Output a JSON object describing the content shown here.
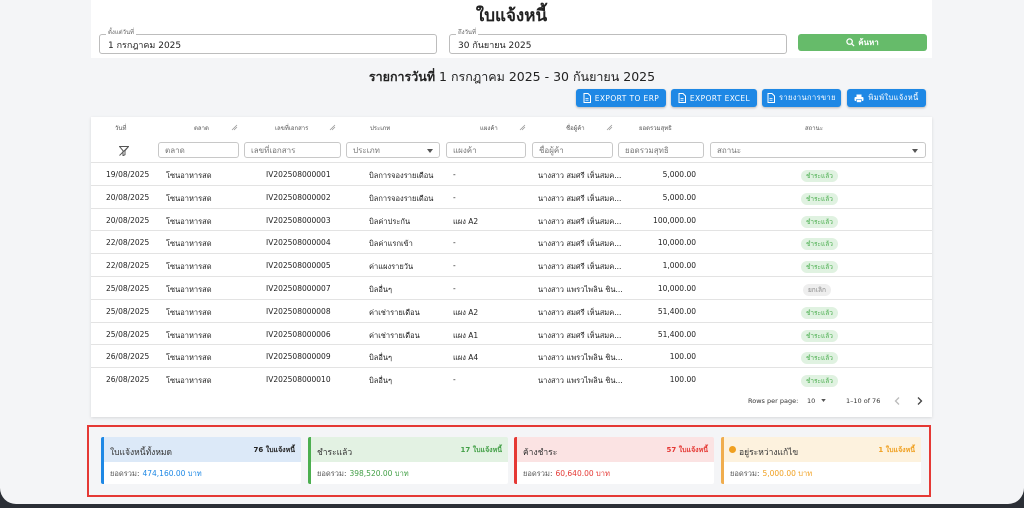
{
  "page": {
    "title": "ใบแจ้งหนี้"
  },
  "filters": {
    "start_label": "ตั้งแต่วันที่",
    "start_value": "1 กรกฎาคม 2025",
    "end_label": "ถึงวันที่",
    "end_value": "30 กันยายน 2025",
    "search_label": "ค้นหา"
  },
  "subtitle": {
    "prefix": "รายการวันที่",
    "range": " 1 กรกฎาคม 2025 - 30 กันยายน 2025"
  },
  "toolbar": {
    "export_erp": "EXPORT TO ERP",
    "export_excel": "EXPORT EXCEL",
    "sales_report": "รายงานการขาย",
    "print": "พิมพ์ใบแจ้งหนี้"
  },
  "table": {
    "columns": [
      "วันที่",
      "ตลาด",
      "เลขที่เอกสาร",
      "ประเภท",
      "แผงค้า",
      "ชื่อผู้ค้า",
      "ยอดรวมสุทธิ",
      "สถานะ"
    ],
    "filter_placeholders": [
      "ตลาด",
      "เลขที่เอกสาร",
      "ประเภท",
      "แผงค้า",
      "ชื่อผู้ค้า",
      "ยอดรวมสุทธิ",
      "สถานะ"
    ],
    "rows": [
      {
        "date": "19/08/2025",
        "market": "โซนอาหารสด",
        "doc": "IV202508000001",
        "type": "บิลการจองรายเดือน",
        "stall": "-",
        "vendor": "นางสาว สมศรี เห็นสมค...",
        "amount": "5,000.00",
        "status": "ชำระแล้ว"
      },
      {
        "date": "20/08/2025",
        "market": "โซนอาหารสด",
        "doc": "IV202508000002",
        "type": "บิลการจองรายเดือน",
        "stall": "-",
        "vendor": "นางสาว สมศรี เห็นสมค...",
        "amount": "5,000.00",
        "status": "ชำระแล้ว"
      },
      {
        "date": "20/08/2025",
        "market": "โซนอาหารสด",
        "doc": "IV202508000003",
        "type": "บิลค่าประกัน",
        "stall": "แผง A2",
        "vendor": "นางสาว สมศรี เห็นสมค...",
        "amount": "100,000.00",
        "status": "ชำระแล้ว"
      },
      {
        "date": "22/08/2025",
        "market": "โซนอาหารสด",
        "doc": "IV202508000004",
        "type": "บิลค่าแรกเข้า",
        "stall": "-",
        "vendor": "นางสาว สมศรี เห็นสมค...",
        "amount": "10,000.00",
        "status": "ชำระแล้ว"
      },
      {
        "date": "22/08/2025",
        "market": "โซนอาหารสด",
        "doc": "IV202508000005",
        "type": "ค่าแผงรายวัน",
        "stall": "-",
        "vendor": "นางสาว สมศรี เห็นสมค...",
        "amount": "1,000.00",
        "status": "ชำระแล้ว"
      },
      {
        "date": "25/08/2025",
        "market": "โซนอาหารสด",
        "doc": "IV202508000007",
        "type": "บิลอื่นๆ",
        "stall": "-",
        "vendor": "นางสาว แพรวไพลิน ชิน...",
        "amount": "10,000.00",
        "status": "ยกเลิก"
      },
      {
        "date": "25/08/2025",
        "market": "โซนอาหารสด",
        "doc": "IV202508000008",
        "type": "ค่าเช่ารายเดือน",
        "stall": "แผง A2",
        "vendor": "นางสาว สมศรี เห็นสมค...",
        "amount": "51,400.00",
        "status": "ชำระแล้ว"
      },
      {
        "date": "25/08/2025",
        "market": "โซนอาหารสด",
        "doc": "IV202508000006",
        "type": "ค่าเช่ารายเดือน",
        "stall": "แผง A1",
        "vendor": "นางสาว สมศรี เห็นสมค...",
        "amount": "51,400.00",
        "status": "ชำระแล้ว"
      },
      {
        "date": "26/08/2025",
        "market": "โซนอาหารสด",
        "doc": "IV202508000009",
        "type": "บิลอื่นๆ",
        "stall": "แผง A4",
        "vendor": "นางสาว แพรวไพลิน ชิน...",
        "amount": "100.00",
        "status": "ชำระแล้ว"
      },
      {
        "date": "26/08/2025",
        "market": "โซนอาหารสด",
        "doc": "IV202508000010",
        "type": "บิลอื่นๆ",
        "stall": "-",
        "vendor": "นางสาว แพรวไพลิน ชิน...",
        "amount": "100.00",
        "status": "ชำระแล้ว"
      }
    ]
  },
  "pagination": {
    "rows_label": "Rows per page:",
    "rows_value": "10",
    "range": "1–10 of 76"
  },
  "summary": [
    {
      "title": "ใบแจ้งหนี้ทั้งหมด",
      "count": "76 ใบแจ้งหนี้",
      "total_label": "ยอดรวม:",
      "total": "474,160.00 บาท",
      "accent": "#1e88e5",
      "bg": "#dce9f8",
      "count_color": "#222",
      "total_color": "#1e88e5"
    },
    {
      "title": "ชำระแล้ว",
      "count": "17 ใบแจ้งหนี้",
      "total_label": "ยอดรวม:",
      "total": "398,520.00 บาท",
      "accent": "#4caf50",
      "bg": "#e3f2e3",
      "count_color": "#43a047",
      "total_color": "#43a047"
    },
    {
      "title": "ค้างชำระ",
      "count": "57 ใบแจ้งหนี้",
      "total_label": "ยอดรวม:",
      "total": "60,640.00 บาท",
      "accent": "#e53935",
      "bg": "#fbe3e3",
      "count_color": "#e53935",
      "total_color": "#e53935"
    },
    {
      "title": "อยู่ระหว่างแก้ไข",
      "count": "1 ใบแจ้งหนี้",
      "total_label": "ยอดรวม:",
      "total": "5,000.00 บาท",
      "accent": "#f0ad4e",
      "bg": "#fdf2de",
      "count_color": "#f0a020",
      "total_color": "#f0a020"
    }
  ],
  "colors": {
    "primary": "#1e88e5",
    "success": "#66bb6a",
    "status_paid_bg": "#e0f2e1",
    "status_paid_text": "#4caf50",
    "status_cancel_bg": "#eeeeee",
    "status_cancel_text": "#888888",
    "highlight_border": "#e53935"
  }
}
